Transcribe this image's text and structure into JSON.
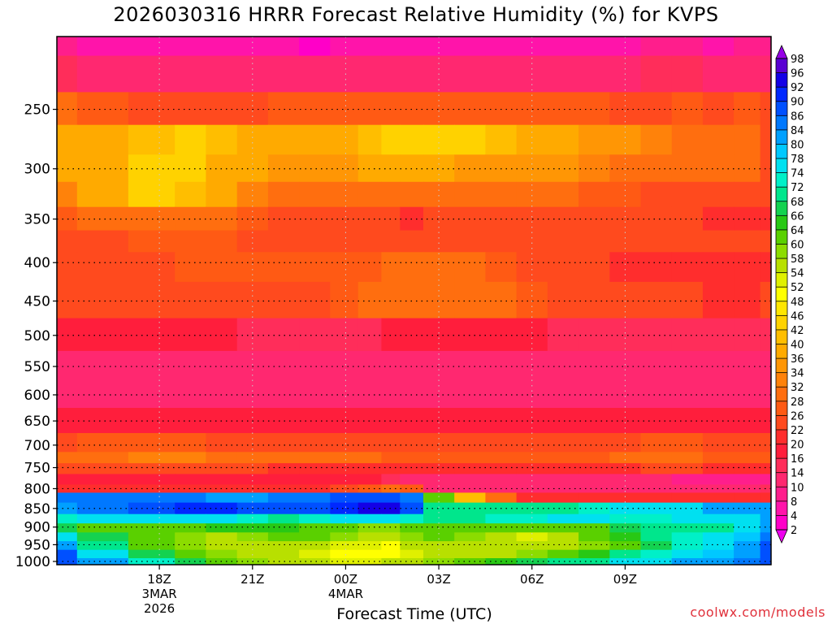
{
  "chart_data": {
    "type": "heatmap",
    "title": "2026030316 HRRR Forecast Relative Humidity (%) for KVPS",
    "xlabel": "Forecast Time (UTC)",
    "ylabel": "",
    "x_hours_from_18Z": [
      -3.3,
      -2,
      0,
      1,
      2,
      3,
      4,
      5,
      6,
      6.8,
      7.5,
      8,
      9,
      10,
      11,
      12,
      13,
      14,
      15,
      16,
      17,
      18,
      19,
      19.7
    ],
    "y_levels_hPa": [
      200,
      225,
      250,
      275,
      300,
      325,
      350,
      375,
      400,
      450,
      500,
      550,
      600,
      650,
      700,
      730,
      750,
      780,
      800,
      820,
      850,
      880,
      900,
      930,
      950,
      980,
      1000
    ],
    "y_axis_range_hPa": [
      200,
      1010
    ],
    "y_scale": "log",
    "x_ticks": [
      {
        "hour": 0,
        "label": "18Z",
        "line2": "3MAR",
        "line3": "2026"
      },
      {
        "hour": 3,
        "label": "21Z",
        "line2": "",
        "line3": ""
      },
      {
        "hour": 6,
        "label": "00Z",
        "line2": "4MAR",
        "line3": ""
      },
      {
        "hour": 9,
        "label": "03Z",
        "line2": "",
        "line3": ""
      },
      {
        "hour": 12,
        "label": "06Z",
        "line2": "",
        "line3": ""
      },
      {
        "hour": 15,
        "label": "09Z",
        "line2": "",
        "line3": ""
      }
    ],
    "y_ticks": [
      250,
      300,
      350,
      400,
      450,
      500,
      550,
      600,
      650,
      700,
      750,
      800,
      850,
      900,
      950,
      1000
    ],
    "rh_percent": [
      [
        8,
        6,
        4,
        4,
        6,
        4,
        4,
        2,
        4,
        6,
        6,
        6,
        4,
        4,
        4,
        6,
        6,
        6,
        6,
        8,
        8,
        6,
        8,
        8
      ],
      [
        14,
        12,
        12,
        10,
        12,
        10,
        10,
        10,
        10,
        12,
        12,
        12,
        10,
        10,
        12,
        12,
        12,
        12,
        12,
        14,
        14,
        12,
        12,
        12
      ],
      [
        28,
        26,
        24,
        24,
        24,
        24,
        26,
        26,
        26,
        26,
        26,
        26,
        26,
        26,
        26,
        26,
        26,
        26,
        24,
        24,
        26,
        24,
        26,
        24
      ],
      [
        36,
        38,
        40,
        42,
        40,
        38,
        36,
        38,
        38,
        40,
        42,
        44,
        44,
        42,
        40,
        38,
        36,
        34,
        34,
        32,
        30,
        28,
        28,
        24
      ],
      [
        36,
        38,
        42,
        42,
        38,
        36,
        34,
        34,
        34,
        36,
        36,
        36,
        36,
        34,
        34,
        34,
        34,
        32,
        30,
        28,
        30,
        28,
        28,
        24
      ],
      [
        32,
        36,
        42,
        40,
        36,
        32,
        30,
        30,
        30,
        30,
        30,
        30,
        28,
        28,
        28,
        28,
        28,
        26,
        26,
        24,
        24,
        22,
        22,
        22
      ],
      [
        26,
        28,
        30,
        30,
        28,
        26,
        24,
        24,
        22,
        22,
        22,
        20,
        22,
        22,
        22,
        22,
        22,
        22,
        22,
        22,
        22,
        20,
        20,
        20
      ],
      [
        24,
        24,
        26,
        26,
        26,
        24,
        24,
        24,
        24,
        24,
        24,
        24,
        24,
        24,
        22,
        22,
        22,
        22,
        22,
        22,
        22,
        22,
        22,
        22
      ],
      [
        22,
        22,
        24,
        26,
        26,
        26,
        26,
        26,
        26,
        26,
        28,
        30,
        30,
        28,
        26,
        24,
        22,
        22,
        20,
        20,
        20,
        20,
        20,
        20
      ],
      [
        22,
        22,
        22,
        22,
        24,
        24,
        24,
        24,
        26,
        28,
        30,
        30,
        30,
        30,
        28,
        26,
        24,
        24,
        22,
        24,
        22,
        20,
        20,
        22
      ],
      [
        16,
        16,
        16,
        16,
        16,
        14,
        14,
        14,
        14,
        14,
        16,
        16,
        16,
        16,
        16,
        16,
        14,
        14,
        14,
        14,
        14,
        14,
        14,
        14
      ],
      [
        10,
        10,
        10,
        10,
        10,
        10,
        10,
        10,
        10,
        10,
        10,
        10,
        10,
        10,
        10,
        10,
        10,
        10,
        10,
        10,
        10,
        10,
        10,
        10
      ],
      [
        10,
        10,
        10,
        10,
        10,
        10,
        10,
        10,
        10,
        10,
        10,
        10,
        10,
        10,
        10,
        10,
        10,
        10,
        10,
        10,
        10,
        10,
        10,
        10
      ],
      [
        16,
        16,
        16,
        16,
        16,
        16,
        16,
        16,
        16,
        16,
        16,
        16,
        16,
        16,
        16,
        16,
        16,
        16,
        16,
        16,
        16,
        16,
        16,
        16
      ],
      [
        24,
        26,
        26,
        26,
        24,
        24,
        24,
        24,
        24,
        24,
        24,
        24,
        24,
        24,
        24,
        24,
        24,
        24,
        24,
        26,
        26,
        24,
        24,
        24
      ],
      [
        30,
        30,
        32,
        32,
        30,
        30,
        28,
        28,
        28,
        28,
        26,
        26,
        26,
        26,
        26,
        26,
        26,
        26,
        28,
        28,
        28,
        26,
        26,
        26
      ],
      [
        22,
        22,
        24,
        24,
        22,
        22,
        20,
        20,
        20,
        20,
        20,
        20,
        20,
        20,
        20,
        20,
        20,
        20,
        20,
        22,
        22,
        20,
        20,
        20
      ],
      [
        16,
        16,
        16,
        16,
        16,
        16,
        16,
        16,
        16,
        16,
        14,
        12,
        12,
        12,
        12,
        12,
        12,
        12,
        10,
        10,
        8,
        8,
        8,
        8
      ],
      [
        20,
        20,
        20,
        20,
        20,
        20,
        20,
        20,
        22,
        26,
        30,
        26,
        12,
        10,
        10,
        10,
        10,
        10,
        10,
        10,
        10,
        10,
        10,
        14
      ],
      [
        84,
        84,
        84,
        84,
        80,
        80,
        84,
        84,
        86,
        86,
        88,
        84,
        60,
        40,
        30,
        20,
        20,
        20,
        20,
        20,
        20,
        20,
        20,
        20
      ],
      [
        80,
        84,
        88,
        90,
        90,
        88,
        88,
        88,
        90,
        92,
        92,
        88,
        70,
        70,
        70,
        70,
        70,
        72,
        74,
        76,
        76,
        80,
        80,
        82
      ],
      [
        72,
        74,
        76,
        76,
        74,
        72,
        70,
        72,
        74,
        74,
        74,
        72,
        70,
        70,
        72,
        72,
        74,
        74,
        72,
        72,
        74,
        74,
        76,
        80
      ],
      [
        66,
        62,
        62,
        62,
        64,
        64,
        64,
        62,
        60,
        58,
        58,
        60,
        62,
        62,
        62,
        62,
        60,
        62,
        66,
        68,
        70,
        70,
        74,
        82
      ],
      [
        74,
        66,
        60,
        58,
        56,
        58,
        60,
        60,
        58,
        56,
        56,
        58,
        60,
        58,
        56,
        52,
        54,
        60,
        64,
        68,
        72,
        74,
        78,
        84
      ],
      [
        80,
        70,
        62,
        58,
        56,
        56,
        56,
        54,
        52,
        52,
        50,
        54,
        56,
        56,
        54,
        54,
        56,
        58,
        62,
        66,
        72,
        76,
        80,
        86
      ],
      [
        86,
        76,
        66,
        62,
        58,
        56,
        54,
        52,
        50,
        50,
        50,
        52,
        54,
        54,
        56,
        58,
        60,
        64,
        68,
        72,
        74,
        78,
        82,
        86
      ],
      [
        88,
        80,
        72,
        66,
        62,
        58,
        56,
        54,
        52,
        52,
        54,
        56,
        58,
        60,
        64,
        66,
        68,
        70,
        74,
        76,
        80,
        82,
        84,
        88
      ]
    ],
    "colorbar_levels": [
      2,
      4,
      8,
      10,
      14,
      16,
      20,
      22,
      26,
      28,
      32,
      34,
      36,
      40,
      42,
      46,
      48,
      52,
      54,
      58,
      60,
      64,
      66,
      68,
      72,
      74,
      78,
      80,
      84,
      86,
      90,
      92,
      96,
      98
    ],
    "colorbar_colors": [
      "#ee00ee",
      "#ff00c8",
      "#ff14aa",
      "#ff1e8c",
      "#ff2870",
      "#ff2d5a",
      "#ff1e3c",
      "#ff2d2d",
      "#ff4a1e",
      "#ff5a14",
      "#ff6e0f",
      "#ff820a",
      "#ff9605",
      "#ffaa00",
      "#ffbe00",
      "#ffd200",
      "#ffe600",
      "#ffff00",
      "#e0f000",
      "#b8e000",
      "#8cdc00",
      "#5ad000",
      "#28c814",
      "#14d250",
      "#00e68c",
      "#00f0c8",
      "#00e0f0",
      "#00c8ff",
      "#00a0ff",
      "#0078ff",
      "#0050ff",
      "#0028ff",
      "#1400e6",
      "#5a00d2",
      "#9600e6"
    ],
    "surface_color": "#a0522d",
    "grid": true
  },
  "credit": "coolwx.com/models"
}
